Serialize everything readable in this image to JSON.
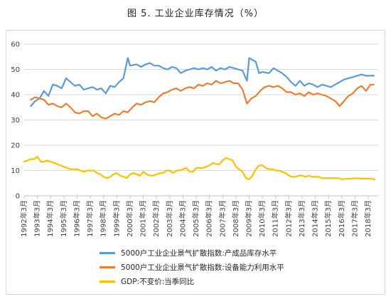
{
  "chart_data": {
    "type": "line",
    "title": "图 5. 工业企业库存情况（%）",
    "ylim": [
      0,
      60
    ],
    "yticks": [
      0,
      10,
      20,
      30,
      40,
      50,
      60
    ],
    "x_start": "1992-03",
    "x_end": "2018-12",
    "xtick_labels": [
      "1992年3月",
      "1993年3月",
      "1994年3月",
      "1995年3月",
      "1996年3月",
      "1997年3月",
      "1998年3月",
      "1999年3月",
      "2000年3月",
      "2001年3月",
      "2002年3月",
      "2003年3月",
      "2004年3月",
      "2005年3月",
      "2006年3月",
      "2007年3月",
      "2008年3月",
      "2009年3月",
      "2010年3月",
      "2011年3月",
      "2012年3月",
      "2013年3月",
      "2014年3月",
      "2015年3月",
      "2016年3月",
      "2017年3月",
      "2018年3月"
    ],
    "grid": true,
    "legend_position": "bottom",
    "series": [
      {
        "name": "5000户工业企业景气扩散指数:产成品库存水平",
        "color": "#5b9bd5",
        "points": [
          [
            "1992-09",
            35.5
          ],
          [
            "1993-01",
            37.5
          ],
          [
            "1993-05",
            38.5
          ],
          [
            "1993-09",
            41.5
          ],
          [
            "1994-01",
            39.5
          ],
          [
            "1994-05",
            44.0
          ],
          [
            "1994-09",
            43.5
          ],
          [
            "1995-01",
            42.5
          ],
          [
            "1995-05",
            46.5
          ],
          [
            "1995-09",
            45.0
          ],
          [
            "1996-01",
            43.5
          ],
          [
            "1996-05",
            44.0
          ],
          [
            "1996-09",
            42.0
          ],
          [
            "1997-01",
            42.5
          ],
          [
            "1997-05",
            43.0
          ],
          [
            "1997-09",
            42.0
          ],
          [
            "1998-01",
            42.5
          ],
          [
            "1998-05",
            40.5
          ],
          [
            "1998-09",
            43.5
          ],
          [
            "1999-01",
            43.0
          ],
          [
            "1999-05",
            45.0
          ],
          [
            "1999-09",
            46.5
          ],
          [
            "2000-01",
            54.5
          ],
          [
            "2000-03",
            51.5
          ],
          [
            "2000-09",
            52.0
          ],
          [
            "2001-01",
            51.0
          ],
          [
            "2001-05",
            52.0
          ],
          [
            "2001-09",
            52.5
          ],
          [
            "2002-01",
            51.5
          ],
          [
            "2002-05",
            51.5
          ],
          [
            "2002-09",
            50.5
          ],
          [
            "2003-01",
            50.0
          ],
          [
            "2003-05",
            51.0
          ],
          [
            "2003-09",
            50.5
          ],
          [
            "2004-01",
            48.5
          ],
          [
            "2004-05",
            49.5
          ],
          [
            "2004-09",
            50.0
          ],
          [
            "2005-01",
            50.5
          ],
          [
            "2005-05",
            50.0
          ],
          [
            "2005-09",
            50.5
          ],
          [
            "2006-01",
            50.0
          ],
          [
            "2006-05",
            51.0
          ],
          [
            "2006-09",
            49.5
          ],
          [
            "2007-01",
            50.5
          ],
          [
            "2007-05",
            50.0
          ],
          [
            "2007-09",
            51.0
          ],
          [
            "2008-01",
            50.5
          ],
          [
            "2008-05",
            50.0
          ],
          [
            "2008-09",
            49.5
          ],
          [
            "2009-01",
            45.5
          ],
          [
            "2009-03",
            54.5
          ],
          [
            "2009-09",
            53.0
          ],
          [
            "2009-12",
            48.5
          ],
          [
            "2010-03",
            49.0
          ],
          [
            "2010-09",
            48.5
          ],
          [
            "2011-01",
            50.5
          ],
          [
            "2011-05",
            49.5
          ],
          [
            "2011-09",
            48.5
          ],
          [
            "2012-01",
            47.0
          ],
          [
            "2012-05",
            45.0
          ],
          [
            "2012-09",
            43.5
          ],
          [
            "2013-01",
            45.5
          ],
          [
            "2013-05",
            43.5
          ],
          [
            "2013-09",
            44.5
          ],
          [
            "2014-01",
            44.0
          ],
          [
            "2014-05",
            43.0
          ],
          [
            "2014-09",
            44.0
          ],
          [
            "2015-01",
            43.5
          ],
          [
            "2015-05",
            43.0
          ],
          [
            "2015-09",
            44.0
          ],
          [
            "2016-01",
            45.0
          ],
          [
            "2016-05",
            46.0
          ],
          [
            "2016-09",
            46.5
          ],
          [
            "2017-01",
            47.0
          ],
          [
            "2017-05",
            47.5
          ],
          [
            "2017-09",
            48.0
          ],
          [
            "2018-01",
            47.5
          ],
          [
            "2018-08",
            47.5
          ]
        ]
      },
      {
        "name": "5000户工业企业景气扩散指数:设备能力利用水平",
        "color": "#ed7d31",
        "points": [
          [
            "1992-09",
            38.0
          ],
          [
            "1993-01",
            39.0
          ],
          [
            "1993-05",
            38.5
          ],
          [
            "1993-09",
            38.0
          ],
          [
            "1994-01",
            36.0
          ],
          [
            "1994-05",
            36.5
          ],
          [
            "1994-09",
            35.5
          ],
          [
            "1995-01",
            35.0
          ],
          [
            "1995-05",
            36.5
          ],
          [
            "1995-09",
            35.0
          ],
          [
            "1996-01",
            33.0
          ],
          [
            "1996-05",
            32.5
          ],
          [
            "1996-09",
            33.5
          ],
          [
            "1997-01",
            33.5
          ],
          [
            "1997-05",
            31.5
          ],
          [
            "1997-09",
            32.5
          ],
          [
            "1998-01",
            31.0
          ],
          [
            "1998-05",
            30.5
          ],
          [
            "1998-09",
            31.5
          ],
          [
            "1999-01",
            32.5
          ],
          [
            "1999-05",
            32.0
          ],
          [
            "1999-09",
            33.5
          ],
          [
            "2000-01",
            33.0
          ],
          [
            "2000-05",
            35.0
          ],
          [
            "2000-09",
            36.5
          ],
          [
            "2001-01",
            36.0
          ],
          [
            "2001-05",
            37.0
          ],
          [
            "2001-09",
            37.5
          ],
          [
            "2002-01",
            37.0
          ],
          [
            "2002-05",
            39.0
          ],
          [
            "2002-09",
            40.5
          ],
          [
            "2003-01",
            41.0
          ],
          [
            "2003-05",
            42.0
          ],
          [
            "2003-09",
            42.5
          ],
          [
            "2004-01",
            41.5
          ],
          [
            "2004-05",
            42.5
          ],
          [
            "2004-09",
            43.0
          ],
          [
            "2005-01",
            42.5
          ],
          [
            "2005-05",
            44.0
          ],
          [
            "2005-09",
            43.5
          ],
          [
            "2006-01",
            44.5
          ],
          [
            "2006-05",
            44.0
          ],
          [
            "2006-09",
            45.5
          ],
          [
            "2007-01",
            44.5
          ],
          [
            "2007-05",
            45.0
          ],
          [
            "2007-09",
            45.5
          ],
          [
            "2008-01",
            44.5
          ],
          [
            "2008-05",
            44.5
          ],
          [
            "2008-09",
            42.0
          ],
          [
            "2009-01",
            36.5
          ],
          [
            "2009-05",
            38.5
          ],
          [
            "2009-09",
            39.5
          ],
          [
            "2010-01",
            41.5
          ],
          [
            "2010-05",
            43.0
          ],
          [
            "2010-09",
            43.5
          ],
          [
            "2011-01",
            43.0
          ],
          [
            "2011-05",
            43.5
          ],
          [
            "2011-09",
            42.5
          ],
          [
            "2012-01",
            41.0
          ],
          [
            "2012-05",
            41.0
          ],
          [
            "2012-09",
            40.0
          ],
          [
            "2013-01",
            40.5
          ],
          [
            "2013-05",
            39.5
          ],
          [
            "2013-09",
            41.0
          ],
          [
            "2014-01",
            40.0
          ],
          [
            "2014-05",
            40.5
          ],
          [
            "2014-09",
            40.0
          ],
          [
            "2015-01",
            39.5
          ],
          [
            "2015-05",
            38.5
          ],
          [
            "2015-09",
            37.5
          ],
          [
            "2016-01",
            35.5
          ],
          [
            "2016-05",
            37.5
          ],
          [
            "2016-09",
            39.5
          ],
          [
            "2017-01",
            40.5
          ],
          [
            "2017-05",
            42.5
          ],
          [
            "2017-09",
            43.5
          ],
          [
            "2018-01",
            41.5
          ],
          [
            "2018-05",
            44.0
          ],
          [
            "2018-08",
            44.0
          ]
        ]
      },
      {
        "name": "GDP:不变价:当季同比",
        "color": "#ffc000",
        "points": [
          [
            "1992-03",
            13.5
          ],
          [
            "1992-06",
            14.0
          ],
          [
            "1992-09",
            14.5
          ],
          [
            "1992-12",
            14.5
          ],
          [
            "1993-03",
            15.5
          ],
          [
            "1993-06",
            13.5
          ],
          [
            "1993-09",
            13.5
          ],
          [
            "1993-12",
            14.0
          ],
          [
            "1994-03",
            13.5
          ],
          [
            "1994-06",
            13.0
          ],
          [
            "1994-09",
            12.5
          ],
          [
            "1994-12",
            12.0
          ],
          [
            "1995-03",
            11.5
          ],
          [
            "1995-06",
            11.0
          ],
          [
            "1995-09",
            10.5
          ],
          [
            "1995-12",
            10.5
          ],
          [
            "1996-03",
            10.5
          ],
          [
            "1996-06",
            10.0
          ],
          [
            "1996-09",
            9.5
          ],
          [
            "1996-12",
            10.0
          ],
          [
            "1997-03",
            10.0
          ],
          [
            "1997-06",
            10.0
          ],
          [
            "1997-09",
            9.0
          ],
          [
            "1997-12",
            8.5
          ],
          [
            "1998-03",
            7.5
          ],
          [
            "1998-06",
            7.0
          ],
          [
            "1998-09",
            7.5
          ],
          [
            "1998-12",
            8.5
          ],
          [
            "1999-03",
            9.0
          ],
          [
            "1999-06",
            8.0
          ],
          [
            "1999-09",
            7.5
          ],
          [
            "1999-12",
            7.0
          ],
          [
            "2000-03",
            8.5
          ],
          [
            "2000-06",
            9.0
          ],
          [
            "2000-09",
            8.5
          ],
          [
            "2000-12",
            8.0
          ],
          [
            "2001-03",
            9.5
          ],
          [
            "2001-06",
            8.5
          ],
          [
            "2001-09",
            8.0
          ],
          [
            "2001-12",
            8.0
          ],
          [
            "2002-03",
            8.5
          ],
          [
            "2002-06",
            9.0
          ],
          [
            "2002-09",
            9.0
          ],
          [
            "2002-12",
            10.0
          ],
          [
            "2003-03",
            10.0
          ],
          [
            "2003-06",
            9.0
          ],
          [
            "2003-09",
            10.0
          ],
          [
            "2003-12",
            10.0
          ],
          [
            "2004-03",
            10.5
          ],
          [
            "2004-06",
            11.0
          ],
          [
            "2004-09",
            9.5
          ],
          [
            "2004-12",
            9.5
          ],
          [
            "2005-03",
            11.0
          ],
          [
            "2005-06",
            11.0
          ],
          [
            "2005-09",
            11.0
          ],
          [
            "2005-12",
            11.5
          ],
          [
            "2006-03",
            12.0
          ],
          [
            "2006-06",
            13.0
          ],
          [
            "2006-09",
            12.5
          ],
          [
            "2006-12",
            12.5
          ],
          [
            "2007-03",
            14.0
          ],
          [
            "2007-06",
            15.0
          ],
          [
            "2007-09",
            14.5
          ],
          [
            "2007-12",
            14.0
          ],
          [
            "2008-03",
            11.5
          ],
          [
            "2008-06",
            10.5
          ],
          [
            "2008-09",
            9.5
          ],
          [
            "2008-12",
            7.0
          ],
          [
            "2009-03",
            6.5
          ],
          [
            "2009-06",
            8.0
          ],
          [
            "2009-09",
            10.5
          ],
          [
            "2009-12",
            12.0
          ],
          [
            "2010-03",
            12.0
          ],
          [
            "2010-06",
            11.0
          ],
          [
            "2010-09",
            10.5
          ],
          [
            "2010-12",
            10.5
          ],
          [
            "2011-03",
            10.0
          ],
          [
            "2011-06",
            10.0
          ],
          [
            "2011-09",
            9.5
          ],
          [
            "2011-12",
            9.0
          ],
          [
            "2012-03",
            8.0
          ],
          [
            "2012-06",
            7.5
          ],
          [
            "2012-09",
            7.5
          ],
          [
            "2012-12",
            8.0
          ],
          [
            "2013-03",
            8.0
          ],
          [
            "2013-06",
            7.5
          ],
          [
            "2013-09",
            8.0
          ],
          [
            "2013-12",
            7.5
          ],
          [
            "2014-03",
            7.5
          ],
          [
            "2014-06",
            7.5
          ],
          [
            "2014-09",
            7.0
          ],
          [
            "2014-12",
            7.0
          ],
          [
            "2015-03",
            7.0
          ],
          [
            "2015-06",
            7.0
          ],
          [
            "2015-09",
            7.0
          ],
          [
            "2015-12",
            7.0
          ],
          [
            "2016-03",
            6.5
          ],
          [
            "2016-06",
            6.7
          ],
          [
            "2016-09",
            6.7
          ],
          [
            "2016-12",
            6.8
          ],
          [
            "2017-03",
            6.9
          ],
          [
            "2017-06",
            6.9
          ],
          [
            "2017-09",
            6.8
          ],
          [
            "2017-12",
            6.8
          ],
          [
            "2018-03",
            6.8
          ],
          [
            "2018-06",
            6.7
          ],
          [
            "2018-09",
            6.5
          ]
        ]
      }
    ]
  }
}
